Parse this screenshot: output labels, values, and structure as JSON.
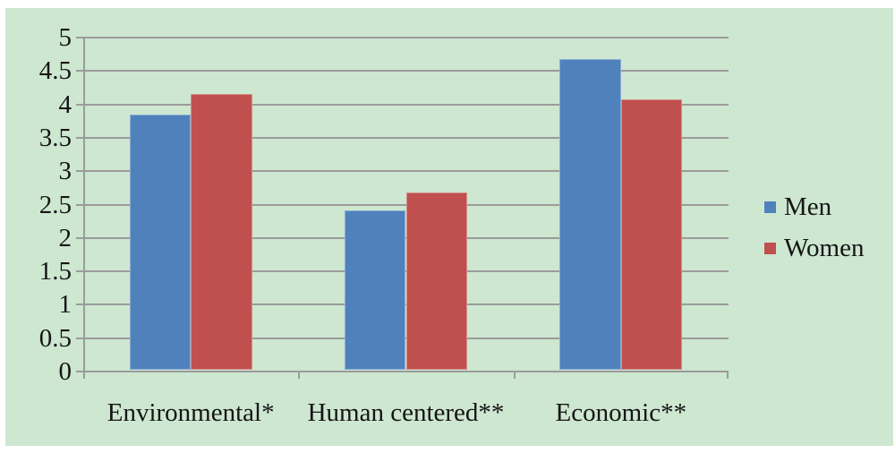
{
  "chart_data": {
    "type": "bar",
    "title": "",
    "xlabel": "",
    "ylabel": "",
    "categories": [
      "Environmental*",
      "Human centered**",
      "Economic**"
    ],
    "series": [
      {
        "name": "Men",
        "color": "#4f81bd",
        "values": [
          3.82,
          2.38,
          4.65
        ]
      },
      {
        "name": "Women",
        "color": "#c0504d",
        "values": [
          4.13,
          2.66,
          4.05
        ]
      }
    ],
    "ylim": [
      0,
      5
    ],
    "ytick_step": 0.5,
    "yticks": [
      "5",
      "4.5",
      "4",
      "3.5",
      "3",
      "2.5",
      "2",
      "1.5",
      "1",
      "0.5",
      "0"
    ],
    "grid": "horizontal",
    "legend_position": "right",
    "colors": {
      "plot_background": "#cde7d0",
      "outer_background": "#ffffff",
      "gridline": "#9b9b9b",
      "text": "#151515"
    }
  }
}
